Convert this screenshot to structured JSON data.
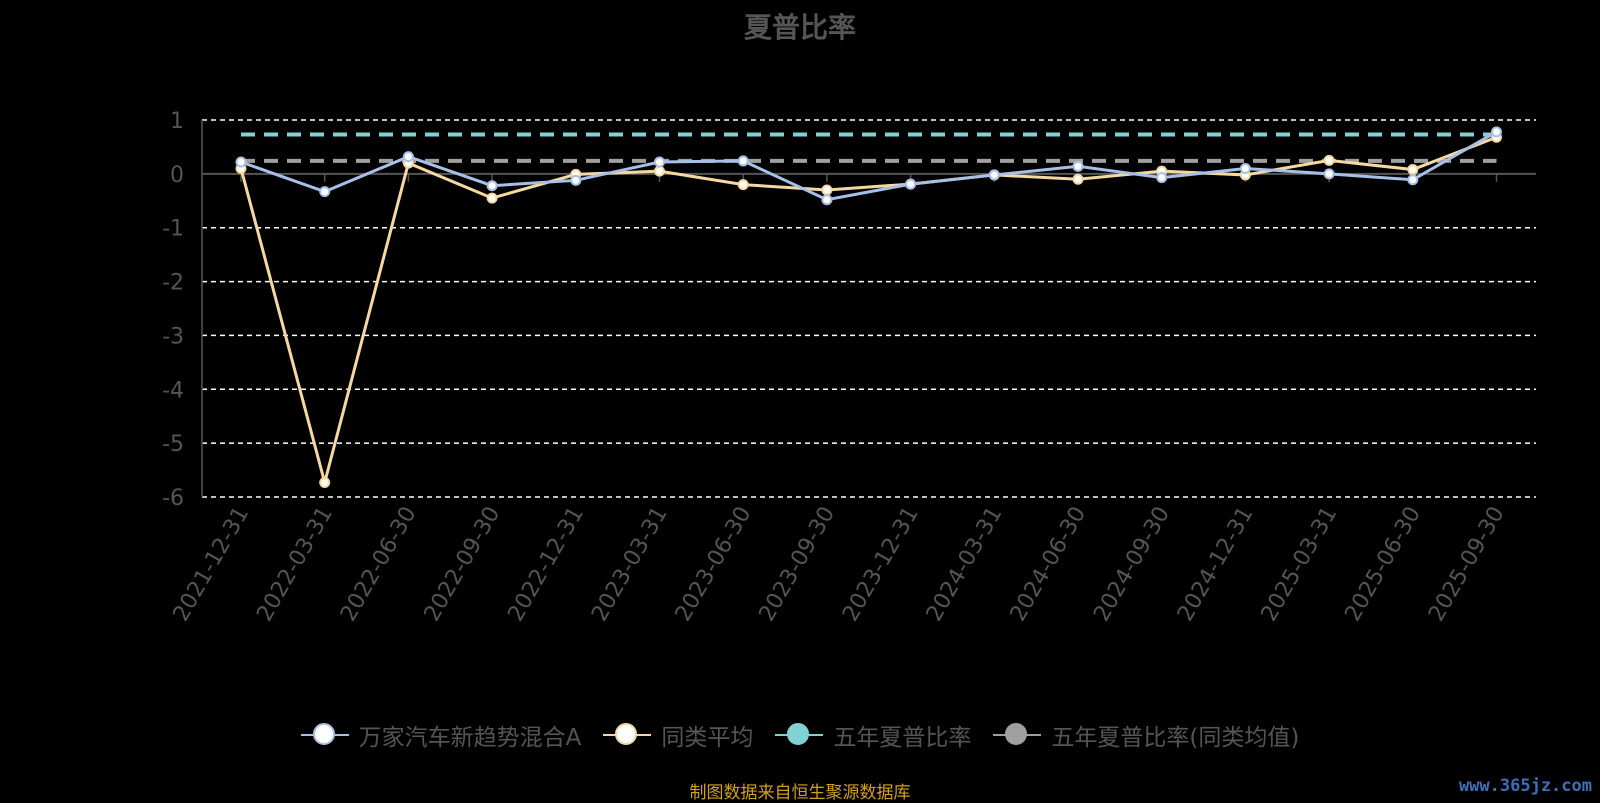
{
  "chart_data": {
    "type": "line",
    "title": "夏普比率",
    "categories": [
      "2021-12-31",
      "2022-03-31",
      "2022-06-30",
      "2022-09-30",
      "2022-12-31",
      "2023-03-31",
      "2023-06-30",
      "2023-09-30",
      "2023-12-31",
      "2024-03-31",
      "2024-06-30",
      "2024-09-30",
      "2024-12-31",
      "2025-03-31",
      "2025-06-30",
      "2025-09-30"
    ],
    "ylim": [
      -6,
      1
    ],
    "yticks": [
      "1",
      "0",
      "-1",
      "-2",
      "-3",
      "-4",
      "-5",
      "-6"
    ],
    "grid": true,
    "legend_position": "bottom",
    "series": [
      {
        "name": "万家汽车新趋势混合A",
        "color": "#a8c0e8",
        "values": [
          0.22,
          -0.33,
          0.32,
          -0.22,
          -0.12,
          0.22,
          0.24,
          -0.48,
          -0.19,
          -0.02,
          0.14,
          -0.07,
          0.1,
          0.0,
          -0.11,
          0.78
        ]
      },
      {
        "name": "同类平均",
        "color": "#f5d9a0",
        "values": [
          0.1,
          -5.73,
          0.2,
          -0.45,
          -0.01,
          0.05,
          -0.2,
          -0.3,
          -0.19,
          -0.02,
          -0.1,
          0.05,
          -0.02,
          0.25,
          0.08,
          0.68
        ]
      },
      {
        "name": "五年夏普比率",
        "color": "#7fd3d3",
        "dashed": true,
        "values": [
          0.73,
          0.73,
          0.73,
          0.73,
          0.73,
          0.73,
          0.73,
          0.73,
          0.73,
          0.73,
          0.73,
          0.73,
          0.73,
          0.73,
          0.73,
          0.73
        ]
      },
      {
        "name": "五年夏普比率(同类均值)",
        "color": "#a0a0a0",
        "dashed": true,
        "values": [
          0.24,
          0.24,
          0.24,
          0.24,
          0.24,
          0.24,
          0.24,
          0.24,
          0.24,
          0.24,
          0.24,
          0.24,
          0.24,
          0.24,
          0.24,
          0.24
        ]
      }
    ]
  },
  "footer": {
    "source": "制图数据来自恒生聚源数据库",
    "watermark": "www.365jz.com"
  }
}
